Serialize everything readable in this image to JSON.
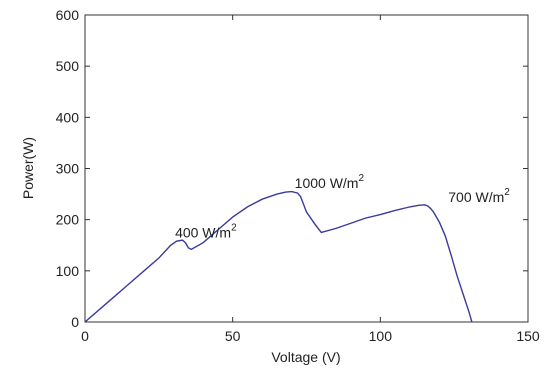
{
  "chart_data": {
    "type": "line",
    "title": "",
    "xlabel": "Voltage (V)",
    "ylabel": "Power(W)",
    "xlim": [
      0,
      150
    ],
    "ylim": [
      0,
      600
    ],
    "x_ticks": [
      "0",
      "50",
      "100",
      "150"
    ],
    "y_ticks": [
      "0",
      "100",
      "200",
      "300",
      "400",
      "500",
      "600"
    ],
    "grid": false,
    "legend": "none",
    "line_color": "#3a3aa0",
    "series": [
      {
        "x": [
          0,
          5,
          10,
          15,
          20,
          25,
          29,
          31,
          33,
          34,
          35,
          36,
          40,
          45,
          50,
          55,
          60,
          65,
          68,
          70,
          72,
          73,
          75,
          78,
          80,
          85,
          90,
          95,
          100,
          105,
          110,
          113,
          115,
          116,
          117,
          118,
          120,
          122,
          124,
          126,
          128,
          130,
          131
        ],
        "y": [
          0,
          25,
          50,
          75,
          100,
          125,
          150,
          158,
          160,
          155,
          145,
          142,
          155,
          180,
          205,
          225,
          240,
          250,
          254,
          255,
          252,
          245,
          215,
          190,
          175,
          183,
          193,
          203,
          210,
          218,
          225,
          228,
          229,
          227,
          222,
          215,
          195,
          168,
          130,
          90,
          55,
          20,
          0
        ]
      }
    ],
    "annotations": [
      {
        "base": "400 W/m",
        "sup": "2",
        "x": 30.5,
        "y": 165
      },
      {
        "base": "1000 W/m",
        "sup": "2",
        "x": 71,
        "y": 262
      },
      {
        "base": "700 W/m",
        "sup": "2",
        "x": 123,
        "y": 235
      }
    ]
  }
}
